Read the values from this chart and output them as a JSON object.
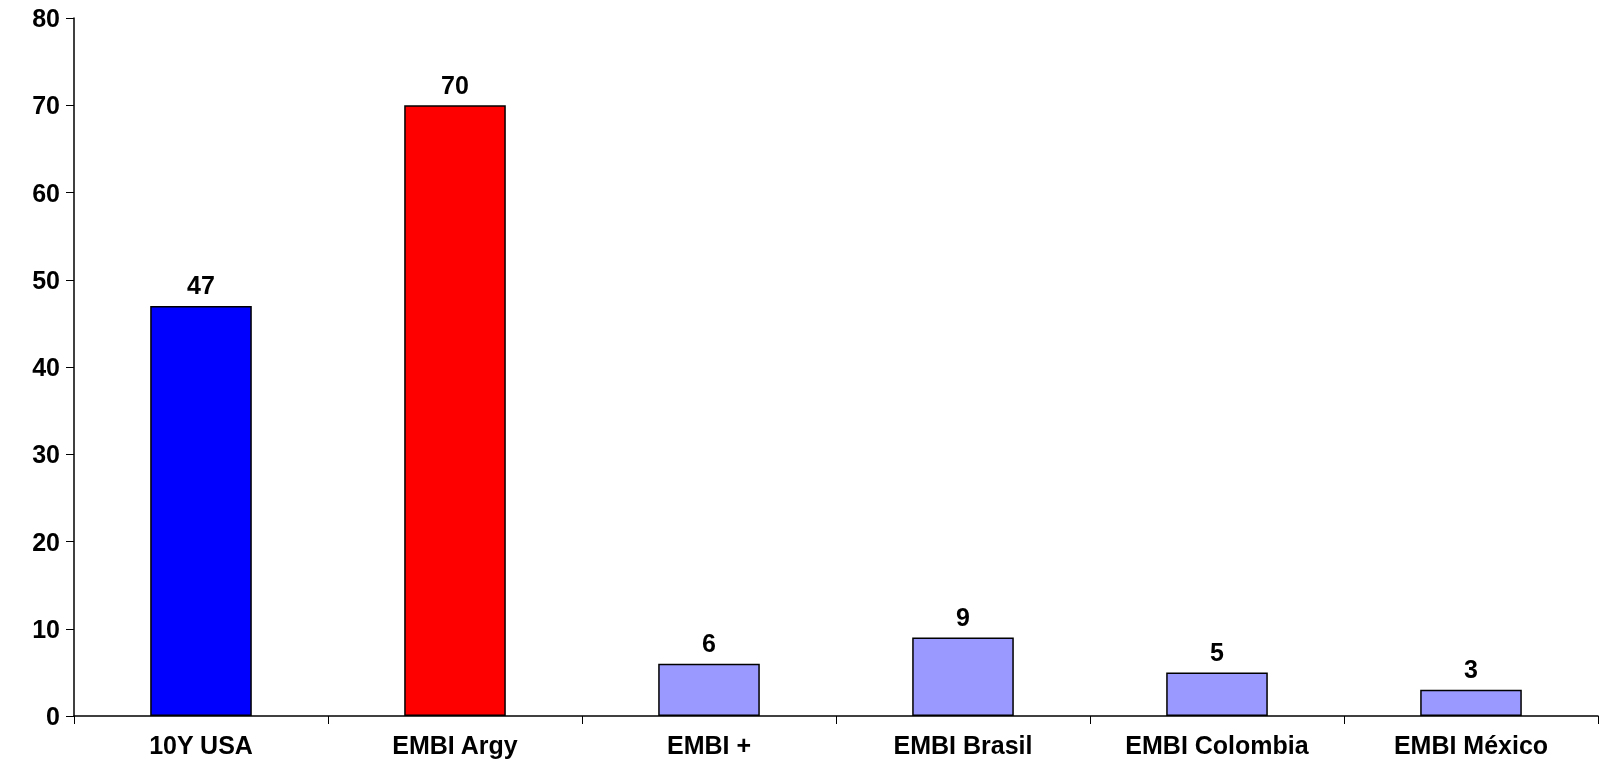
{
  "chart_data": {
    "type": "bar",
    "categories": [
      "10Y USA",
      "EMBI Argy",
      "EMBI +",
      "EMBI Brasil",
      "EMBI Colombia",
      "EMBI México"
    ],
    "values": [
      47,
      70,
      6,
      9,
      5,
      3
    ],
    "colors": [
      "#0000ff",
      "#ff0000",
      "#9999ff",
      "#9999ff",
      "#9999ff",
      "#9999ff"
    ],
    "ylim": [
      0,
      80
    ],
    "yticks": [
      0,
      10,
      20,
      30,
      40,
      50,
      60,
      70,
      80
    ],
    "grid": false,
    "data_labels": true
  }
}
